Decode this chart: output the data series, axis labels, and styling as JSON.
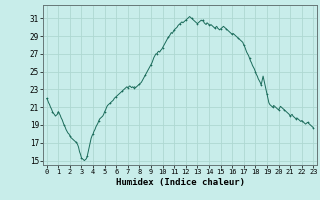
{
  "title": "",
  "xlabel": "Humidex (Indice chaleur)",
  "ylabel": "",
  "x_ticks": [
    0,
    1,
    2,
    3,
    4,
    5,
    6,
    7,
    8,
    9,
    10,
    11,
    12,
    13,
    14,
    15,
    16,
    17,
    18,
    19,
    20,
    21,
    22,
    23
  ],
  "y_ticks": [
    15,
    17,
    19,
    21,
    23,
    25,
    27,
    29,
    31
  ],
  "xlim": [
    -0.3,
    23.3
  ],
  "ylim": [
    14.5,
    32.5
  ],
  "bg_color": "#c8edea",
  "grid_color": "#aed8d2",
  "line_color": "#1a6b5a",
  "x_data": [
    0.0,
    0.083,
    0.167,
    0.25,
    0.333,
    0.417,
    0.5,
    0.583,
    0.667,
    0.75,
    0.833,
    0.917,
    1.0,
    1.083,
    1.167,
    1.25,
    1.333,
    1.417,
    1.5,
    1.583,
    1.667,
    1.75,
    1.833,
    1.917,
    2.0,
    2.083,
    2.167,
    2.25,
    2.333,
    2.417,
    2.5,
    2.583,
    2.667,
    2.75,
    2.833,
    2.917,
    3.0,
    3.083,
    3.167,
    3.25,
    3.333,
    3.417,
    3.5,
    3.583,
    3.667,
    3.75,
    3.833,
    3.917,
    4.0,
    4.083,
    4.167,
    4.25,
    4.333,
    4.417,
    4.5,
    4.583,
    4.667,
    4.75,
    4.833,
    4.917,
    5.0,
    5.083,
    5.167,
    5.25,
    5.333,
    5.417,
    5.5,
    5.583,
    5.667,
    5.75,
    5.833,
    5.917,
    6.0,
    6.083,
    6.167,
    6.25,
    6.333,
    6.417,
    6.5,
    6.583,
    6.667,
    6.75,
    6.833,
    6.917,
    7.0,
    7.083,
    7.167,
    7.25,
    7.333,
    7.417,
    7.5,
    7.583,
    7.667,
    7.75,
    7.833,
    7.917,
    8.0,
    8.083,
    8.167,
    8.25,
    8.333,
    8.417,
    8.5,
    8.583,
    8.667,
    8.75,
    8.833,
    8.917,
    9.0,
    9.083,
    9.167,
    9.25,
    9.333,
    9.417,
    9.5,
    9.583,
    9.667,
    9.75,
    9.833,
    9.917,
    10.0,
    10.083,
    10.167,
    10.25,
    10.333,
    10.417,
    10.5,
    10.583,
    10.667,
    10.75,
    10.833,
    10.917,
    11.0,
    11.083,
    11.167,
    11.25,
    11.333,
    11.417,
    11.5,
    11.583,
    11.667,
    11.75,
    11.833,
    11.917,
    12.0,
    12.083,
    12.167,
    12.25,
    12.333,
    12.417,
    12.5,
    12.583,
    12.667,
    12.75,
    12.833,
    12.917,
    13.0,
    13.083,
    13.167,
    13.25,
    13.333,
    13.417,
    13.5,
    13.583,
    13.667,
    13.75,
    13.833,
    13.917,
    14.0,
    14.083,
    14.167,
    14.25,
    14.333,
    14.417,
    14.5,
    14.583,
    14.667,
    14.75,
    14.833,
    14.917,
    15.0,
    15.083,
    15.167,
    15.25,
    15.333,
    15.417,
    15.5,
    15.583,
    15.667,
    15.75,
    15.833,
    15.917,
    16.0,
    16.083,
    16.167,
    16.25,
    16.333,
    16.417,
    16.5,
    16.583,
    16.667,
    16.75,
    16.833,
    16.917,
    17.0,
    17.083,
    17.167,
    17.25,
    17.333,
    17.417,
    17.5,
    17.583,
    17.667,
    17.75,
    17.833,
    17.917,
    18.0,
    18.083,
    18.167,
    18.25,
    18.333,
    18.417,
    18.5,
    18.583,
    18.667,
    18.75,
    18.833,
    18.917,
    19.0,
    19.083,
    19.167,
    19.25,
    19.333,
    19.417,
    19.5,
    19.583,
    19.667,
    19.75,
    19.833,
    19.917,
    20.0,
    20.083,
    20.167,
    20.25,
    20.333,
    20.417,
    20.5,
    20.583,
    20.667,
    20.75,
    20.833,
    20.917,
    21.0,
    21.083,
    21.167,
    21.25,
    21.333,
    21.417,
    21.5,
    21.583,
    21.667,
    21.75,
    21.833,
    21.917,
    22.0,
    22.083,
    22.167,
    22.25,
    22.333,
    22.417,
    22.5,
    22.583,
    22.667,
    22.75,
    22.833,
    22.917,
    23.0
  ],
  "y_data": [
    22.0,
    21.8,
    21.5,
    21.3,
    21.0,
    20.8,
    20.5,
    20.3,
    20.2,
    20.0,
    20.1,
    20.2,
    20.5,
    20.3,
    20.1,
    19.8,
    19.6,
    19.3,
    19.0,
    18.8,
    18.5,
    18.3,
    18.1,
    18.0,
    17.8,
    17.6,
    17.5,
    17.4,
    17.3,
    17.2,
    17.1,
    17.0,
    16.8,
    16.5,
    16.0,
    15.7,
    15.3,
    15.2,
    15.1,
    15.0,
    15.1,
    15.2,
    15.5,
    16.0,
    16.5,
    17.0,
    17.5,
    17.8,
    18.0,
    18.3,
    18.5,
    18.8,
    19.0,
    19.2,
    19.5,
    19.7,
    19.8,
    19.9,
    20.0,
    20.2,
    20.5,
    20.7,
    21.0,
    21.2,
    21.3,
    21.4,
    21.5,
    21.6,
    21.7,
    21.8,
    22.0,
    22.1,
    22.2,
    22.3,
    22.4,
    22.5,
    22.6,
    22.7,
    22.8,
    22.9,
    23.0,
    23.1,
    23.2,
    23.3,
    23.2,
    23.3,
    23.4,
    23.3,
    23.2,
    23.3,
    23.2,
    23.3,
    23.2,
    23.3,
    23.4,
    23.5,
    23.6,
    23.7,
    23.8,
    24.0,
    24.2,
    24.4,
    24.6,
    24.8,
    25.0,
    25.2,
    25.4,
    25.6,
    25.8,
    26.0,
    26.3,
    26.6,
    26.8,
    27.0,
    27.0,
    27.2,
    27.3,
    27.2,
    27.4,
    27.5,
    27.7,
    27.9,
    28.1,
    28.3,
    28.5,
    28.7,
    28.9,
    29.0,
    29.2,
    29.4,
    29.3,
    29.5,
    29.7,
    29.8,
    29.9,
    30.0,
    30.2,
    30.3,
    30.4,
    30.5,
    30.6,
    30.5,
    30.6,
    30.7,
    30.8,
    30.9,
    31.0,
    31.1,
    31.2,
    31.1,
    31.0,
    30.9,
    30.8,
    30.7,
    30.6,
    30.5,
    30.4,
    30.5,
    30.6,
    30.7,
    30.8,
    30.7,
    30.8,
    30.5,
    30.4,
    30.3,
    30.5,
    30.4,
    30.3,
    30.2,
    30.3,
    30.2,
    30.1,
    30.0,
    29.9,
    30.0,
    30.1,
    29.9,
    29.8,
    29.7,
    29.8,
    29.9,
    30.0,
    30.1,
    30.0,
    29.9,
    29.8,
    29.7,
    29.6,
    29.5,
    29.4,
    29.3,
    29.2,
    29.3,
    29.2,
    29.1,
    29.0,
    28.9,
    28.8,
    28.7,
    28.6,
    28.5,
    28.4,
    28.3,
    28.0,
    27.8,
    27.5,
    27.2,
    27.0,
    26.8,
    26.5,
    26.2,
    26.0,
    25.7,
    25.5,
    25.3,
    25.0,
    24.7,
    24.5,
    24.2,
    24.0,
    23.8,
    23.5,
    24.0,
    24.5,
    24.0,
    23.5,
    23.0,
    22.5,
    22.0,
    21.5,
    21.3,
    21.2,
    21.1,
    21.0,
    21.2,
    21.1,
    21.0,
    20.9,
    20.8,
    20.7,
    20.9,
    21.1,
    21.0,
    20.9,
    20.8,
    20.7,
    20.6,
    20.5,
    20.4,
    20.3,
    20.2,
    20.0,
    20.1,
    20.2,
    20.0,
    19.9,
    19.8,
    19.7,
    19.8,
    19.7,
    19.6,
    19.5,
    19.4,
    19.5,
    19.4,
    19.3,
    19.2,
    19.1,
    19.2,
    19.3,
    19.2,
    19.1,
    19.0,
    18.9,
    18.8,
    18.7
  ]
}
